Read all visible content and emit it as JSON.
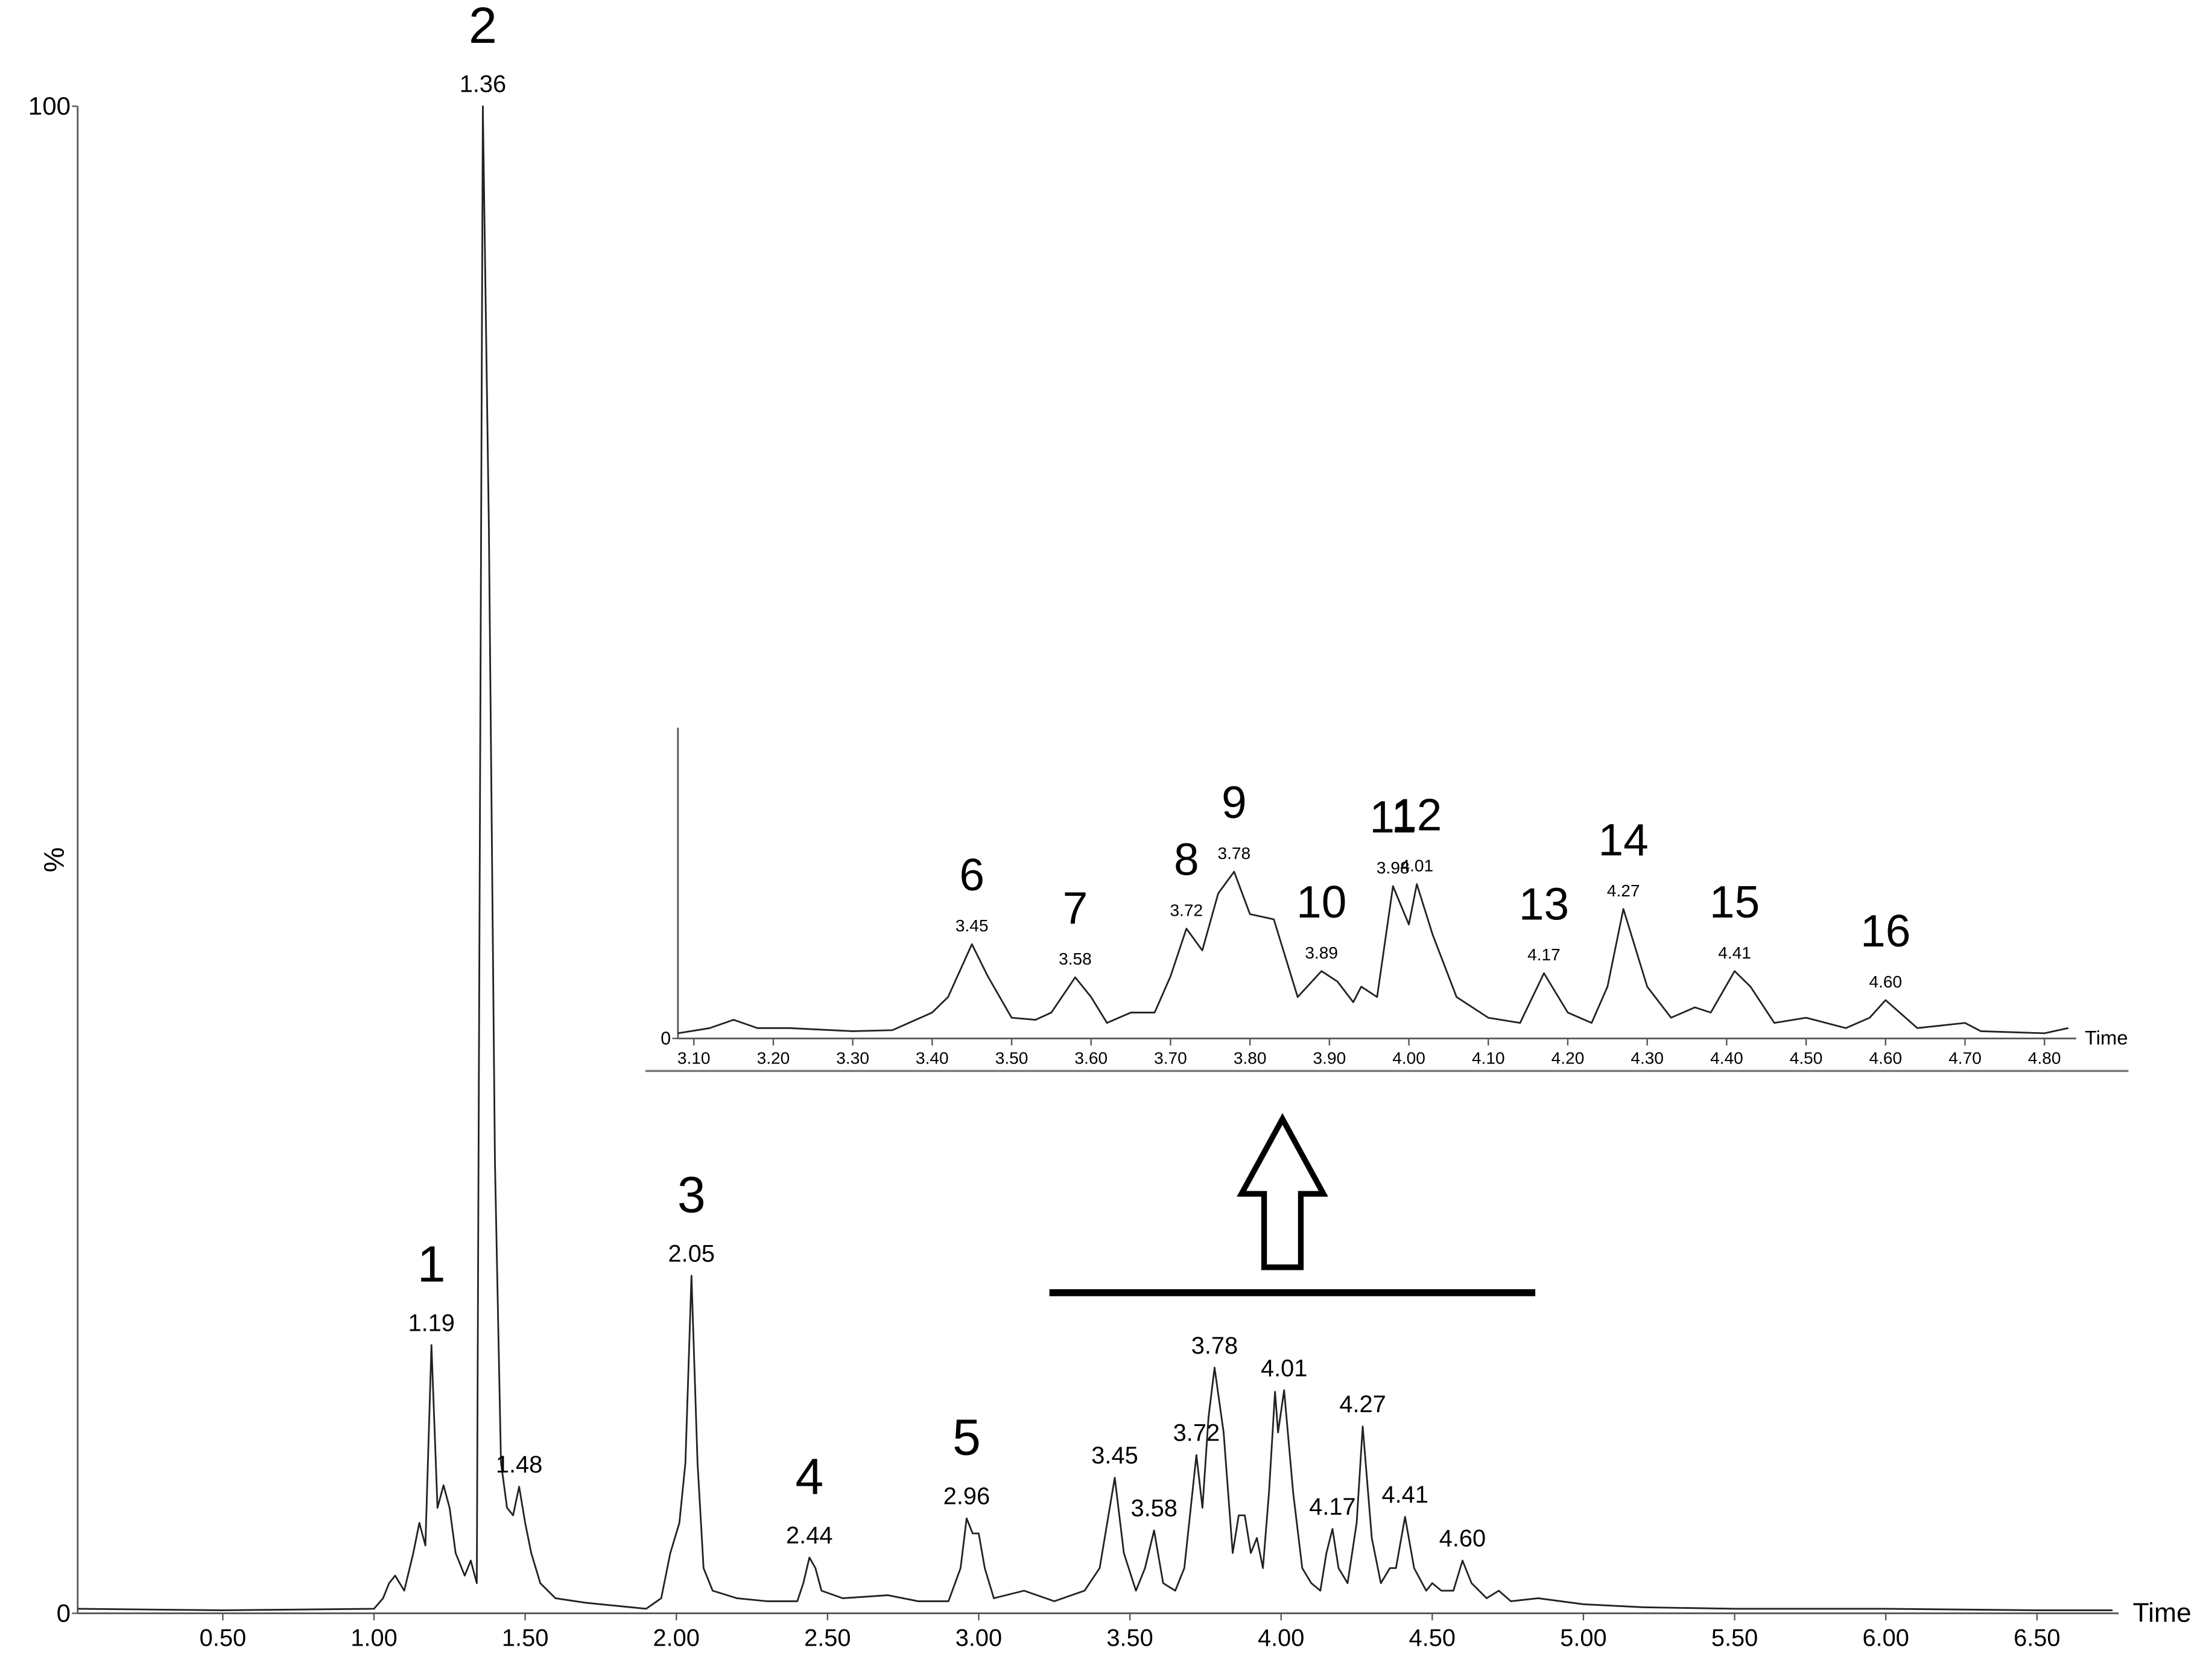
{
  "chart_data": [
    {
      "type": "line",
      "color": "#222222",
      "xlabel": "Time",
      "ylabel": "%",
      "xlim": [
        0.02,
        6.77
      ],
      "ylim": [
        0,
        100
      ],
      "xticks": [
        {
          "value": 0.5,
          "label": "0.50"
        },
        {
          "value": 1.0,
          "label": "1.00"
        },
        {
          "value": 1.5,
          "label": "1.50"
        },
        {
          "value": 2.0,
          "label": "2.00"
        },
        {
          "value": 2.5,
          "label": "2.50"
        },
        {
          "value": 3.0,
          "label": "3.00"
        },
        {
          "value": 3.5,
          "label": "3.50"
        },
        {
          "value": 4.0,
          "label": "4.00"
        },
        {
          "value": 4.5,
          "label": "4.50"
        },
        {
          "value": 5.0,
          "label": "5.00"
        },
        {
          "value": 5.5,
          "label": "5.50"
        },
        {
          "value": 6.0,
          "label": "6.00"
        },
        {
          "value": 6.5,
          "label": "6.50"
        }
      ],
      "yticks": [
        0,
        100
      ],
      "x": [
        0.02,
        0.5,
        1.0,
        1.03,
        1.05,
        1.07,
        1.1,
        1.13,
        1.15,
        1.17,
        1.19,
        1.21,
        1.23,
        1.25,
        1.27,
        1.3,
        1.32,
        1.34,
        1.36,
        1.38,
        1.4,
        1.42,
        1.44,
        1.46,
        1.48,
        1.5,
        1.52,
        1.55,
        1.6,
        1.7,
        1.8,
        1.9,
        1.95,
        1.98,
        2.01,
        2.03,
        2.05,
        2.07,
        2.09,
        2.12,
        2.2,
        2.3,
        2.4,
        2.42,
        2.44,
        2.46,
        2.48,
        2.55,
        2.7,
        2.8,
        2.9,
        2.94,
        2.96,
        2.98,
        3.0,
        3.02,
        3.05,
        3.15,
        3.25,
        3.35,
        3.4,
        3.45,
        3.48,
        3.52,
        3.55,
        3.58,
        3.61,
        3.65,
        3.68,
        3.72,
        3.74,
        3.76,
        3.78,
        3.81,
        3.84,
        3.86,
        3.88,
        3.9,
        3.92,
        3.94,
        3.96,
        3.98,
        3.99,
        4.01,
        4.04,
        4.07,
        4.1,
        4.13,
        4.15,
        4.17,
        4.19,
        4.22,
        4.25,
        4.27,
        4.3,
        4.33,
        4.36,
        4.38,
        4.41,
        4.44,
        4.48,
        4.5,
        4.53,
        4.57,
        4.6,
        4.63,
        4.68,
        4.72,
        4.76,
        4.85,
        5.0,
        5.2,
        5.5,
        6.0,
        6.5,
        6.75
      ],
      "values": [
        0.3,
        0.2,
        0.3,
        1,
        2,
        2.5,
        1.5,
        4,
        6,
        4.5,
        17.8,
        7,
        8.5,
        7,
        4,
        2.5,
        3.5,
        2,
        100,
        72,
        30,
        10,
        7,
        6.5,
        8.4,
        6,
        4,
        2,
        1,
        0.7,
        0.5,
        0.3,
        1,
        4,
        6,
        10,
        22.4,
        10,
        3,
        1.5,
        1,
        0.8,
        0.8,
        2,
        3.7,
        3,
        1.5,
        1,
        1.2,
        0.8,
        0.8,
        3,
        6.3,
        5.3,
        5.3,
        3,
        1,
        1.5,
        0.8,
        1.5,
        3,
        9,
        4,
        1.5,
        3,
        5.5,
        2,
        1.5,
        3,
        10.5,
        7,
        13,
        16.3,
        12,
        4,
        6.5,
        6.5,
        4,
        5,
        3,
        8,
        14.7,
        12,
        14.8,
        8,
        3,
        2,
        1.5,
        4,
        5.6,
        3,
        2,
        6,
        12.4,
        5,
        2,
        3,
        3,
        6.4,
        3,
        1.5,
        2,
        1.5,
        1.5,
        3.5,
        2,
        1,
        1.5,
        0.8,
        1,
        0.6,
        0.4,
        0.3,
        0.3,
        0.2,
        0.2
      ],
      "annotations": [
        {
          "x": 1.19,
          "y": 17.8,
          "label": "1.19",
          "peak": "1"
        },
        {
          "x": 1.36,
          "y": 100,
          "label": "1.36",
          "peak": "2"
        },
        {
          "x": 1.48,
          "y": 8.4,
          "label": "1.48"
        },
        {
          "x": 2.05,
          "y": 22.4,
          "label": "2.05",
          "peak": "3"
        },
        {
          "x": 2.44,
          "y": 3.7,
          "label": "2.44",
          "peak": "4"
        },
        {
          "x": 2.96,
          "y": 6.3,
          "label": "2.96",
          "peak": "5"
        },
        {
          "x": 3.45,
          "y": 9,
          "label": "3.45"
        },
        {
          "x": 3.58,
          "y": 5.5,
          "label": "3.58"
        },
        {
          "x": 3.72,
          "y": 10.5,
          "label": "3.72"
        },
        {
          "x": 3.78,
          "y": 16.3,
          "label": "3.78"
        },
        {
          "x": 4.01,
          "y": 14.8,
          "label": "4.01"
        },
        {
          "x": 4.17,
          "y": 5.6,
          "label": "4.17"
        },
        {
          "x": 4.27,
          "y": 12.4,
          "label": "4.27"
        },
        {
          "x": 4.41,
          "y": 6.4,
          "label": "4.41"
        },
        {
          "x": 4.6,
          "y": 3.5,
          "label": "4.60"
        }
      ]
    },
    {
      "type": "line",
      "color": "#222222",
      "xlabel": "Time",
      "xlim": [
        3.08,
        4.84
      ],
      "ylim": [
        0,
        30
      ],
      "xticks": [
        {
          "value": 3.1,
          "label": "3.10"
        },
        {
          "value": 3.2,
          "label": "3.20"
        },
        {
          "value": 3.3,
          "label": "3.30"
        },
        {
          "value": 3.4,
          "label": "3.40"
        },
        {
          "value": 3.5,
          "label": "3.50"
        },
        {
          "value": 3.6,
          "label": "3.60"
        },
        {
          "value": 3.7,
          "label": "3.70"
        },
        {
          "value": 3.8,
          "label": "3.80"
        },
        {
          "value": 3.9,
          "label": "3.90"
        },
        {
          "value": 4.0,
          "label": "4.00"
        },
        {
          "value": 4.1,
          "label": "4.10"
        },
        {
          "value": 4.2,
          "label": "4.20"
        },
        {
          "value": 4.3,
          "label": "4.30"
        },
        {
          "value": 4.4,
          "label": "4.40"
        },
        {
          "value": 4.5,
          "label": "4.50"
        },
        {
          "value": 4.6,
          "label": "4.60"
        },
        {
          "value": 4.7,
          "label": "4.70"
        },
        {
          "value": 4.8,
          "label": "4.80"
        }
      ],
      "yticks": [
        0
      ],
      "x": [
        3.08,
        3.12,
        3.15,
        3.18,
        3.22,
        3.3,
        3.35,
        3.4,
        3.42,
        3.45,
        3.47,
        3.5,
        3.53,
        3.55,
        3.58,
        3.6,
        3.62,
        3.65,
        3.68,
        3.7,
        3.72,
        3.74,
        3.76,
        3.78,
        3.8,
        3.83,
        3.86,
        3.89,
        3.91,
        3.93,
        3.94,
        3.96,
        3.98,
        4.0,
        4.01,
        4.03,
        4.06,
        4.1,
        4.14,
        4.17,
        4.2,
        4.23,
        4.25,
        4.27,
        4.3,
        4.33,
        4.36,
        4.38,
        4.41,
        4.43,
        4.46,
        4.5,
        4.55,
        4.58,
        4.6,
        4.64,
        4.7,
        4.72,
        4.8,
        4.83
      ],
      "values": [
        0.5,
        1,
        1.8,
        1,
        1,
        0.7,
        0.8,
        2.5,
        4,
        9.1,
        6,
        2,
        1.8,
        2.5,
        5.9,
        4,
        1.5,
        2.5,
        2.5,
        6,
        10.6,
        8.5,
        14,
        16.1,
        12,
        11.5,
        4,
        6.5,
        5.5,
        3.5,
        5,
        4,
        14.7,
        11,
        14.9,
        10,
        4,
        2,
        1.5,
        6.3,
        2.5,
        1.5,
        5,
        12.5,
        5,
        2,
        3,
        2.5,
        6.5,
        5,
        1.5,
        2,
        1,
        2,
        3.7,
        1,
        1.5,
        0.7,
        0.5,
        1
      ],
      "annotations": [
        {
          "x": 3.45,
          "y": 9.1,
          "label": "3.45",
          "peak": "6"
        },
        {
          "x": 3.58,
          "y": 5.9,
          "label": "3.58",
          "peak": "7"
        },
        {
          "x": 3.72,
          "y": 10.6,
          "label": "3.72",
          "peak": "8"
        },
        {
          "x": 3.78,
          "y": 16.1,
          "label": "3.78",
          "peak": "9"
        },
        {
          "x": 3.89,
          "y": 6.5,
          "label": "3.89",
          "peak": "10"
        },
        {
          "x": 3.98,
          "y": 14.7,
          "label": "3.98",
          "peak": "11"
        },
        {
          "x": 4.01,
          "y": 14.9,
          "label": "4.01",
          "peak": "12"
        },
        {
          "x": 4.17,
          "y": 6.3,
          "label": "4.17",
          "peak": "13"
        },
        {
          "x": 4.27,
          "y": 12.5,
          "label": "4.27",
          "peak": "14"
        },
        {
          "x": 4.41,
          "y": 6.5,
          "label": "4.41",
          "peak": "15"
        },
        {
          "x": 4.6,
          "y": 3.7,
          "label": "4.60",
          "peak": "16"
        }
      ]
    }
  ]
}
